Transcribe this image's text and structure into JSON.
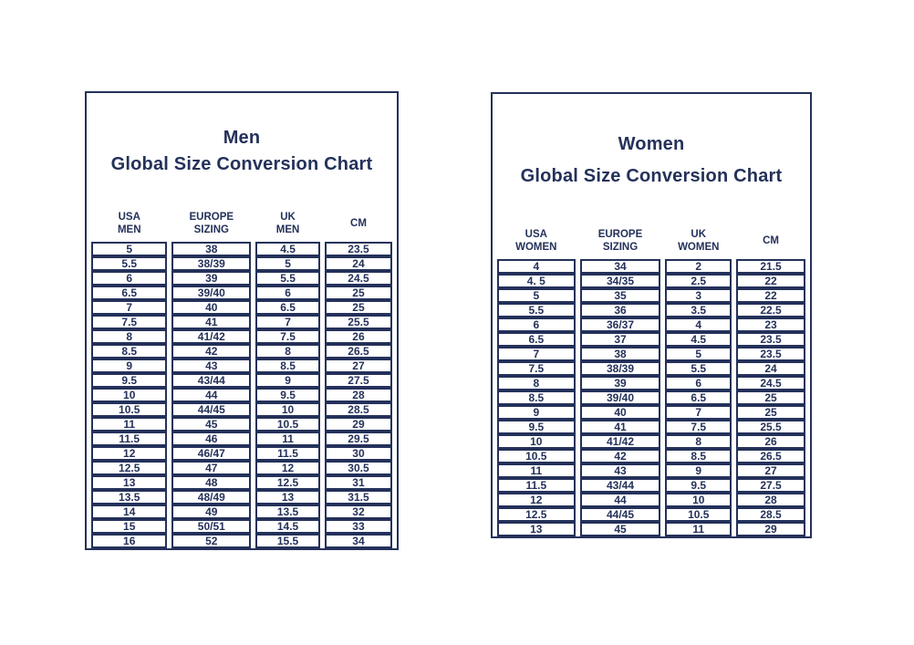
{
  "colors": {
    "navy": "#24315a",
    "background": "#ffffff"
  },
  "men_chart": {
    "title": "Men",
    "subtitle": "Global Size Conversion Chart",
    "columns": [
      "USA\nMEN",
      "EUROPE\nSIZING",
      "UK\nMEN",
      "CM"
    ],
    "rows": [
      [
        "5",
        "38",
        "4.5",
        "23.5"
      ],
      [
        "5.5",
        "38/39",
        "5",
        "24"
      ],
      [
        "6",
        "39",
        "5.5",
        "24.5"
      ],
      [
        "6.5",
        "39/40",
        "6",
        "25"
      ],
      [
        "7",
        "40",
        "6.5",
        "25"
      ],
      [
        "7.5",
        "41",
        "7",
        "25.5"
      ],
      [
        "8",
        "41/42",
        "7.5",
        "26"
      ],
      [
        "8.5",
        "42",
        "8",
        "26.5"
      ],
      [
        "9",
        "43",
        "8.5",
        "27"
      ],
      [
        "9.5",
        "43/44",
        "9",
        "27.5"
      ],
      [
        "10",
        "44",
        "9.5",
        "28"
      ],
      [
        "10.5",
        "44/45",
        "10",
        "28.5"
      ],
      [
        "11",
        "45",
        "10.5",
        "29"
      ],
      [
        "11.5",
        "46",
        "11",
        "29.5"
      ],
      [
        "12",
        "46/47",
        "11.5",
        "30"
      ],
      [
        "12.5",
        "47",
        "12",
        "30.5"
      ],
      [
        "13",
        "48",
        "12.5",
        "31"
      ],
      [
        "13.5",
        "48/49",
        "13",
        "31.5"
      ],
      [
        "14",
        "49",
        "13.5",
        "32"
      ],
      [
        "15",
        "50/51",
        "14.5",
        "33"
      ],
      [
        "16",
        "52",
        "15.5",
        "34"
      ]
    ]
  },
  "women_chart": {
    "title": "Women",
    "subtitle": "Global Size Conversion Chart",
    "columns": [
      "USA\nWOMEN",
      "EUROPE\nSIZING",
      "UK\nWOMEN",
      "CM"
    ],
    "rows": [
      [
        "4",
        "34",
        "2",
        "21.5"
      ],
      [
        "4. 5",
        "34/35",
        "2.5",
        "22"
      ],
      [
        "5",
        "35",
        "3",
        "22"
      ],
      [
        "5.5",
        "36",
        "3.5",
        "22.5"
      ],
      [
        "6",
        "36/37",
        "4",
        "23"
      ],
      [
        "6.5",
        "37",
        "4.5",
        "23.5"
      ],
      [
        "7",
        "38",
        "5",
        "23.5"
      ],
      [
        "7.5",
        "38/39",
        "5.5",
        "24"
      ],
      [
        "8",
        "39",
        "6",
        "24.5"
      ],
      [
        "8.5",
        "39/40",
        "6.5",
        "25"
      ],
      [
        "9",
        "40",
        "7",
        "25"
      ],
      [
        "9.5",
        "41",
        "7.5",
        "25.5"
      ],
      [
        "10",
        "41/42",
        "8",
        "26"
      ],
      [
        "10.5",
        "42",
        "8.5",
        "26.5"
      ],
      [
        "11",
        "43",
        "9",
        "27"
      ],
      [
        "11.5",
        "43/44",
        "9.5",
        "27.5"
      ],
      [
        "12",
        "44",
        "10",
        "28"
      ],
      [
        "12.5",
        "44/45",
        "10.5",
        "28.5"
      ],
      [
        "13",
        "45",
        "11",
        "29"
      ]
    ]
  }
}
